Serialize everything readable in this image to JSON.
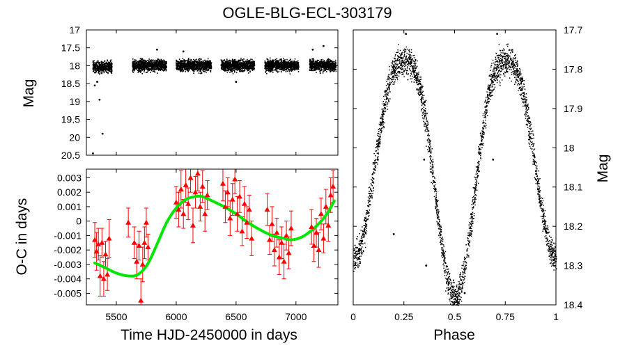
{
  "chart_data": [
    {
      "id": "lightcurve",
      "type": "scatter",
      "title": "OGLE-BLG-ECL-303179",
      "xlabel": "",
      "ylabel": "Mag",
      "xlim": [
        5250,
        7350
      ],
      "ylim": [
        20.5,
        17.0
      ],
      "y_inverted": true,
      "yticks": [
        17,
        17.5,
        18,
        18.5,
        19,
        19.5,
        20,
        20.5
      ],
      "yticklabels": [
        "17",
        "17.5",
        "18",
        "18.5",
        "19",
        "19.5",
        "20",
        "20.5"
      ],
      "seasons": [
        {
          "x_start": 5300,
          "x_end": 5460,
          "mag_mean": 18.02,
          "mag_spread": 0.17
        },
        {
          "x_start": 5630,
          "x_end": 5915,
          "mag_mean": 17.98,
          "mag_spread": 0.17
        },
        {
          "x_start": 5995,
          "x_end": 6290,
          "mag_mean": 17.98,
          "mag_spread": 0.17
        },
        {
          "x_start": 6370,
          "x_end": 6650,
          "mag_mean": 17.98,
          "mag_spread": 0.17
        },
        {
          "x_start": 6735,
          "x_end": 7020,
          "mag_mean": 17.98,
          "mag_spread": 0.17
        },
        {
          "x_start": 7110,
          "x_end": 7330,
          "mag_mean": 17.98,
          "mag_spread": 0.17
        }
      ],
      "outliers": [
        {
          "x": 5320,
          "y": 18.55
        },
        {
          "x": 5340,
          "y": 18.45
        },
        {
          "x": 5360,
          "y": 18.95
        },
        {
          "x": 5385,
          "y": 19.9
        },
        {
          "x": 5305,
          "y": 20.45
        },
        {
          "x": 5840,
          "y": 17.55
        },
        {
          "x": 6060,
          "y": 17.6
        },
        {
          "x": 6500,
          "y": 18.45
        },
        {
          "x": 7140,
          "y": 17.55
        },
        {
          "x": 7230,
          "y": 17.45
        }
      ]
    },
    {
      "id": "oc",
      "type": "scatter",
      "xlabel": "Time HJD-2450000 in days",
      "ylabel": "O-C in days",
      "xlim": [
        5250,
        7350
      ],
      "ylim": [
        -0.0058,
        0.0036
      ],
      "xticks": [
        5500,
        6000,
        6500,
        7000
      ],
      "xticklabels": [
        "5500",
        "6000",
        "6500",
        "7000"
      ],
      "yticks": [
        0.003,
        0.002,
        0.001,
        0,
        -0.001,
        -0.002,
        -0.003,
        -0.004,
        -0.005
      ],
      "yticklabels": [
        "0.003",
        "0.002",
        "0.001",
        "0",
        "-0.001",
        "-0.002",
        "-0.003",
        "-0.004",
        "-0.005"
      ],
      "series": [
        {
          "name": "O-C measurements",
          "color": "#ff0000",
          "marker": "triangle",
          "points": [
            {
              "x": 5320,
              "y": -0.0013,
              "err": 0.0012
            },
            {
              "x": 5335,
              "y": -0.0021,
              "err": 0.0013
            },
            {
              "x": 5350,
              "y": -0.0016,
              "err": 0.0011
            },
            {
              "x": 5365,
              "y": -0.0038,
              "err": 0.0014
            },
            {
              "x": 5380,
              "y": -0.0015,
              "err": 0.001
            },
            {
              "x": 5395,
              "y": -0.004,
              "err": 0.0012
            },
            {
              "x": 5410,
              "y": -0.0023,
              "err": 0.0009
            },
            {
              "x": 5425,
              "y": -0.0037,
              "err": 0.0011
            },
            {
              "x": 5440,
              "y": -0.0012,
              "err": 0.0013
            },
            {
              "x": 5600,
              "y": -0.0001,
              "err": 0.001
            },
            {
              "x": 5650,
              "y": -0.0015,
              "err": 0.0011
            },
            {
              "x": 5670,
              "y": -0.0028,
              "err": 0.0012
            },
            {
              "x": 5690,
              "y": -0.0017,
              "err": 0.001
            },
            {
              "x": 5705,
              "y": -0.0055,
              "err": 0.0015
            },
            {
              "x": 5720,
              "y": -0.003,
              "err": 0.0012
            },
            {
              "x": 5735,
              "y": -0.0015,
              "err": 0.0011
            },
            {
              "x": 5750,
              "y": -0.0001,
              "err": 0.001
            },
            {
              "x": 5765,
              "y": -0.0018,
              "err": 0.0009
            },
            {
              "x": 6000,
              "y": 0.0013,
              "err": 0.0011
            },
            {
              "x": 6020,
              "y": 0.0008,
              "err": 0.0012
            },
            {
              "x": 6040,
              "y": 0.0022,
              "err": 0.0013
            },
            {
              "x": 6060,
              "y": 0.0005,
              "err": 0.001
            },
            {
              "x": 6080,
              "y": 0.0025,
              "err": 0.0012
            },
            {
              "x": 6100,
              "y": 0.0012,
              "err": 0.0011
            },
            {
              "x": 6120,
              "y": 0.003,
              "err": 0.001
            },
            {
              "x": 6140,
              "y": -0.0003,
              "err": 0.0012
            },
            {
              "x": 6160,
              "y": 0.002,
              "err": 0.0011
            },
            {
              "x": 6180,
              "y": 0.0033,
              "err": 0.0012
            },
            {
              "x": 6200,
              "y": 0.001,
              "err": 0.001
            },
            {
              "x": 6220,
              "y": 0.0024,
              "err": 0.0011
            },
            {
              "x": 6240,
              "y": 0.0005,
              "err": 0.0012
            },
            {
              "x": 6260,
              "y": 0.0018,
              "err": 0.001
            },
            {
              "x": 6390,
              "y": 0.0026,
              "err": 0.0012
            },
            {
              "x": 6410,
              "y": 0.001,
              "err": 0.0011
            },
            {
              "x": 6430,
              "y": 0.002,
              "err": 0.001
            },
            {
              "x": 6450,
              "y": 0.0002,
              "err": 0.0012
            },
            {
              "x": 6470,
              "y": 0.0015,
              "err": 0.0011
            },
            {
              "x": 6490,
              "y": 0.0029,
              "err": 0.001
            },
            {
              "x": 6510,
              "y": 0.0005,
              "err": 0.0012
            },
            {
              "x": 6530,
              "y": 0.0017,
              "err": 0.0011
            },
            {
              "x": 6550,
              "y": -0.0007,
              "err": 0.001
            },
            {
              "x": 6570,
              "y": 0.0012,
              "err": 0.0012
            },
            {
              "x": 6590,
              "y": -0.0001,
              "err": 0.0011
            },
            {
              "x": 6610,
              "y": 0.0008,
              "err": 0.001
            },
            {
              "x": 6630,
              "y": -0.0012,
              "err": 0.0012
            },
            {
              "x": 6760,
              "y": 0.0008,
              "err": 0.0011
            },
            {
              "x": 6780,
              "y": -0.0013,
              "err": 0.001
            },
            {
              "x": 6800,
              "y": -0.0002,
              "err": 0.0012
            },
            {
              "x": 6820,
              "y": -0.002,
              "err": 0.0011
            },
            {
              "x": 6840,
              "y": -0.0008,
              "err": 0.001
            },
            {
              "x": 6860,
              "y": -0.0025,
              "err": 0.0012
            },
            {
              "x": 6880,
              "y": -0.0015,
              "err": 0.0011
            },
            {
              "x": 6900,
              "y": -0.0028,
              "err": 0.0012
            },
            {
              "x": 6920,
              "y": -0.001,
              "err": 0.001
            },
            {
              "x": 6940,
              "y": -0.0022,
              "err": 0.0011
            },
            {
              "x": 6960,
              "y": -0.0005,
              "err": 0.0012
            },
            {
              "x": 7130,
              "y": -0.0004,
              "err": 0.0012
            },
            {
              "x": 7150,
              "y": -0.0017,
              "err": 0.0011
            },
            {
              "x": 7170,
              "y": -0.0008,
              "err": 0.001
            },
            {
              "x": 7190,
              "y": -0.002,
              "err": 0.0012
            },
            {
              "x": 7210,
              "y": 0.0005,
              "err": 0.0011
            },
            {
              "x": 7230,
              "y": -0.0012,
              "err": 0.001
            },
            {
              "x": 7250,
              "y": 0.001,
              "err": 0.0012
            },
            {
              "x": 7270,
              "y": -0.0003,
              "err": 0.0011
            },
            {
              "x": 7290,
              "y": 0.0018,
              "err": 0.0012
            },
            {
              "x": 7310,
              "y": 0.0024,
              "err": 0.0011
            }
          ]
        },
        {
          "name": "fit",
          "color": "#00e600",
          "type": "line",
          "x": [
            5320,
            5400,
            5500,
            5600,
            5680,
            5760,
            5840,
            5920,
            6000,
            6080,
            6160,
            6220,
            6300,
            6400,
            6500,
            6600,
            6700,
            6800,
            6900,
            6960,
            7050,
            7150,
            7250,
            7320
          ],
          "values": [
            -0.0029,
            -0.0032,
            -0.0036,
            -0.0038,
            -0.0037,
            -0.003,
            -0.0016,
            -0.0001,
            0.0009,
            0.0015,
            0.0017,
            0.0017,
            0.0014,
            0.001,
            0.0005,
            -0.0001,
            -0.0006,
            -0.001,
            -0.0012,
            -0.0013,
            -0.0011,
            -0.0005,
            0.0004,
            0.0014
          ]
        }
      ]
    },
    {
      "id": "phase",
      "type": "scatter",
      "xlabel": "Phase",
      "ylabel": "Mag",
      "xlim": [
        0,
        1
      ],
      "ylim": [
        18.4,
        17.7
      ],
      "y_inverted": true,
      "xticks": [
        0,
        0.25,
        0.5,
        0.75,
        1
      ],
      "xticklabels": [
        "0",
        "0.25",
        "0.5",
        "0.75",
        "1"
      ],
      "yticks": [
        17.7,
        17.8,
        17.9,
        18,
        18.1,
        18.2,
        18.3,
        18.4
      ],
      "yticklabels": [
        "17.7",
        "17.8",
        "17.9",
        "18",
        "18.1",
        "18.2",
        "18.3",
        "18.4"
      ],
      "model": {
        "max_mag": 17.78,
        "primary_min_mag": 18.28,
        "secondary_min_mag": 18.38,
        "scatter": 0.035
      },
      "outliers": [
        {
          "x": 0.2,
          "y": 18.22
        },
        {
          "x": 0.35,
          "y": 18.03
        },
        {
          "x": 0.36,
          "y": 18.3
        },
        {
          "x": 0.55,
          "y": 18.37
        },
        {
          "x": 0.62,
          "y": 18.06
        },
        {
          "x": 0.69,
          "y": 18.03
        },
        {
          "x": 0.26,
          "y": 17.71
        },
        {
          "x": 0.71,
          "y": 17.71
        }
      ]
    }
  ]
}
